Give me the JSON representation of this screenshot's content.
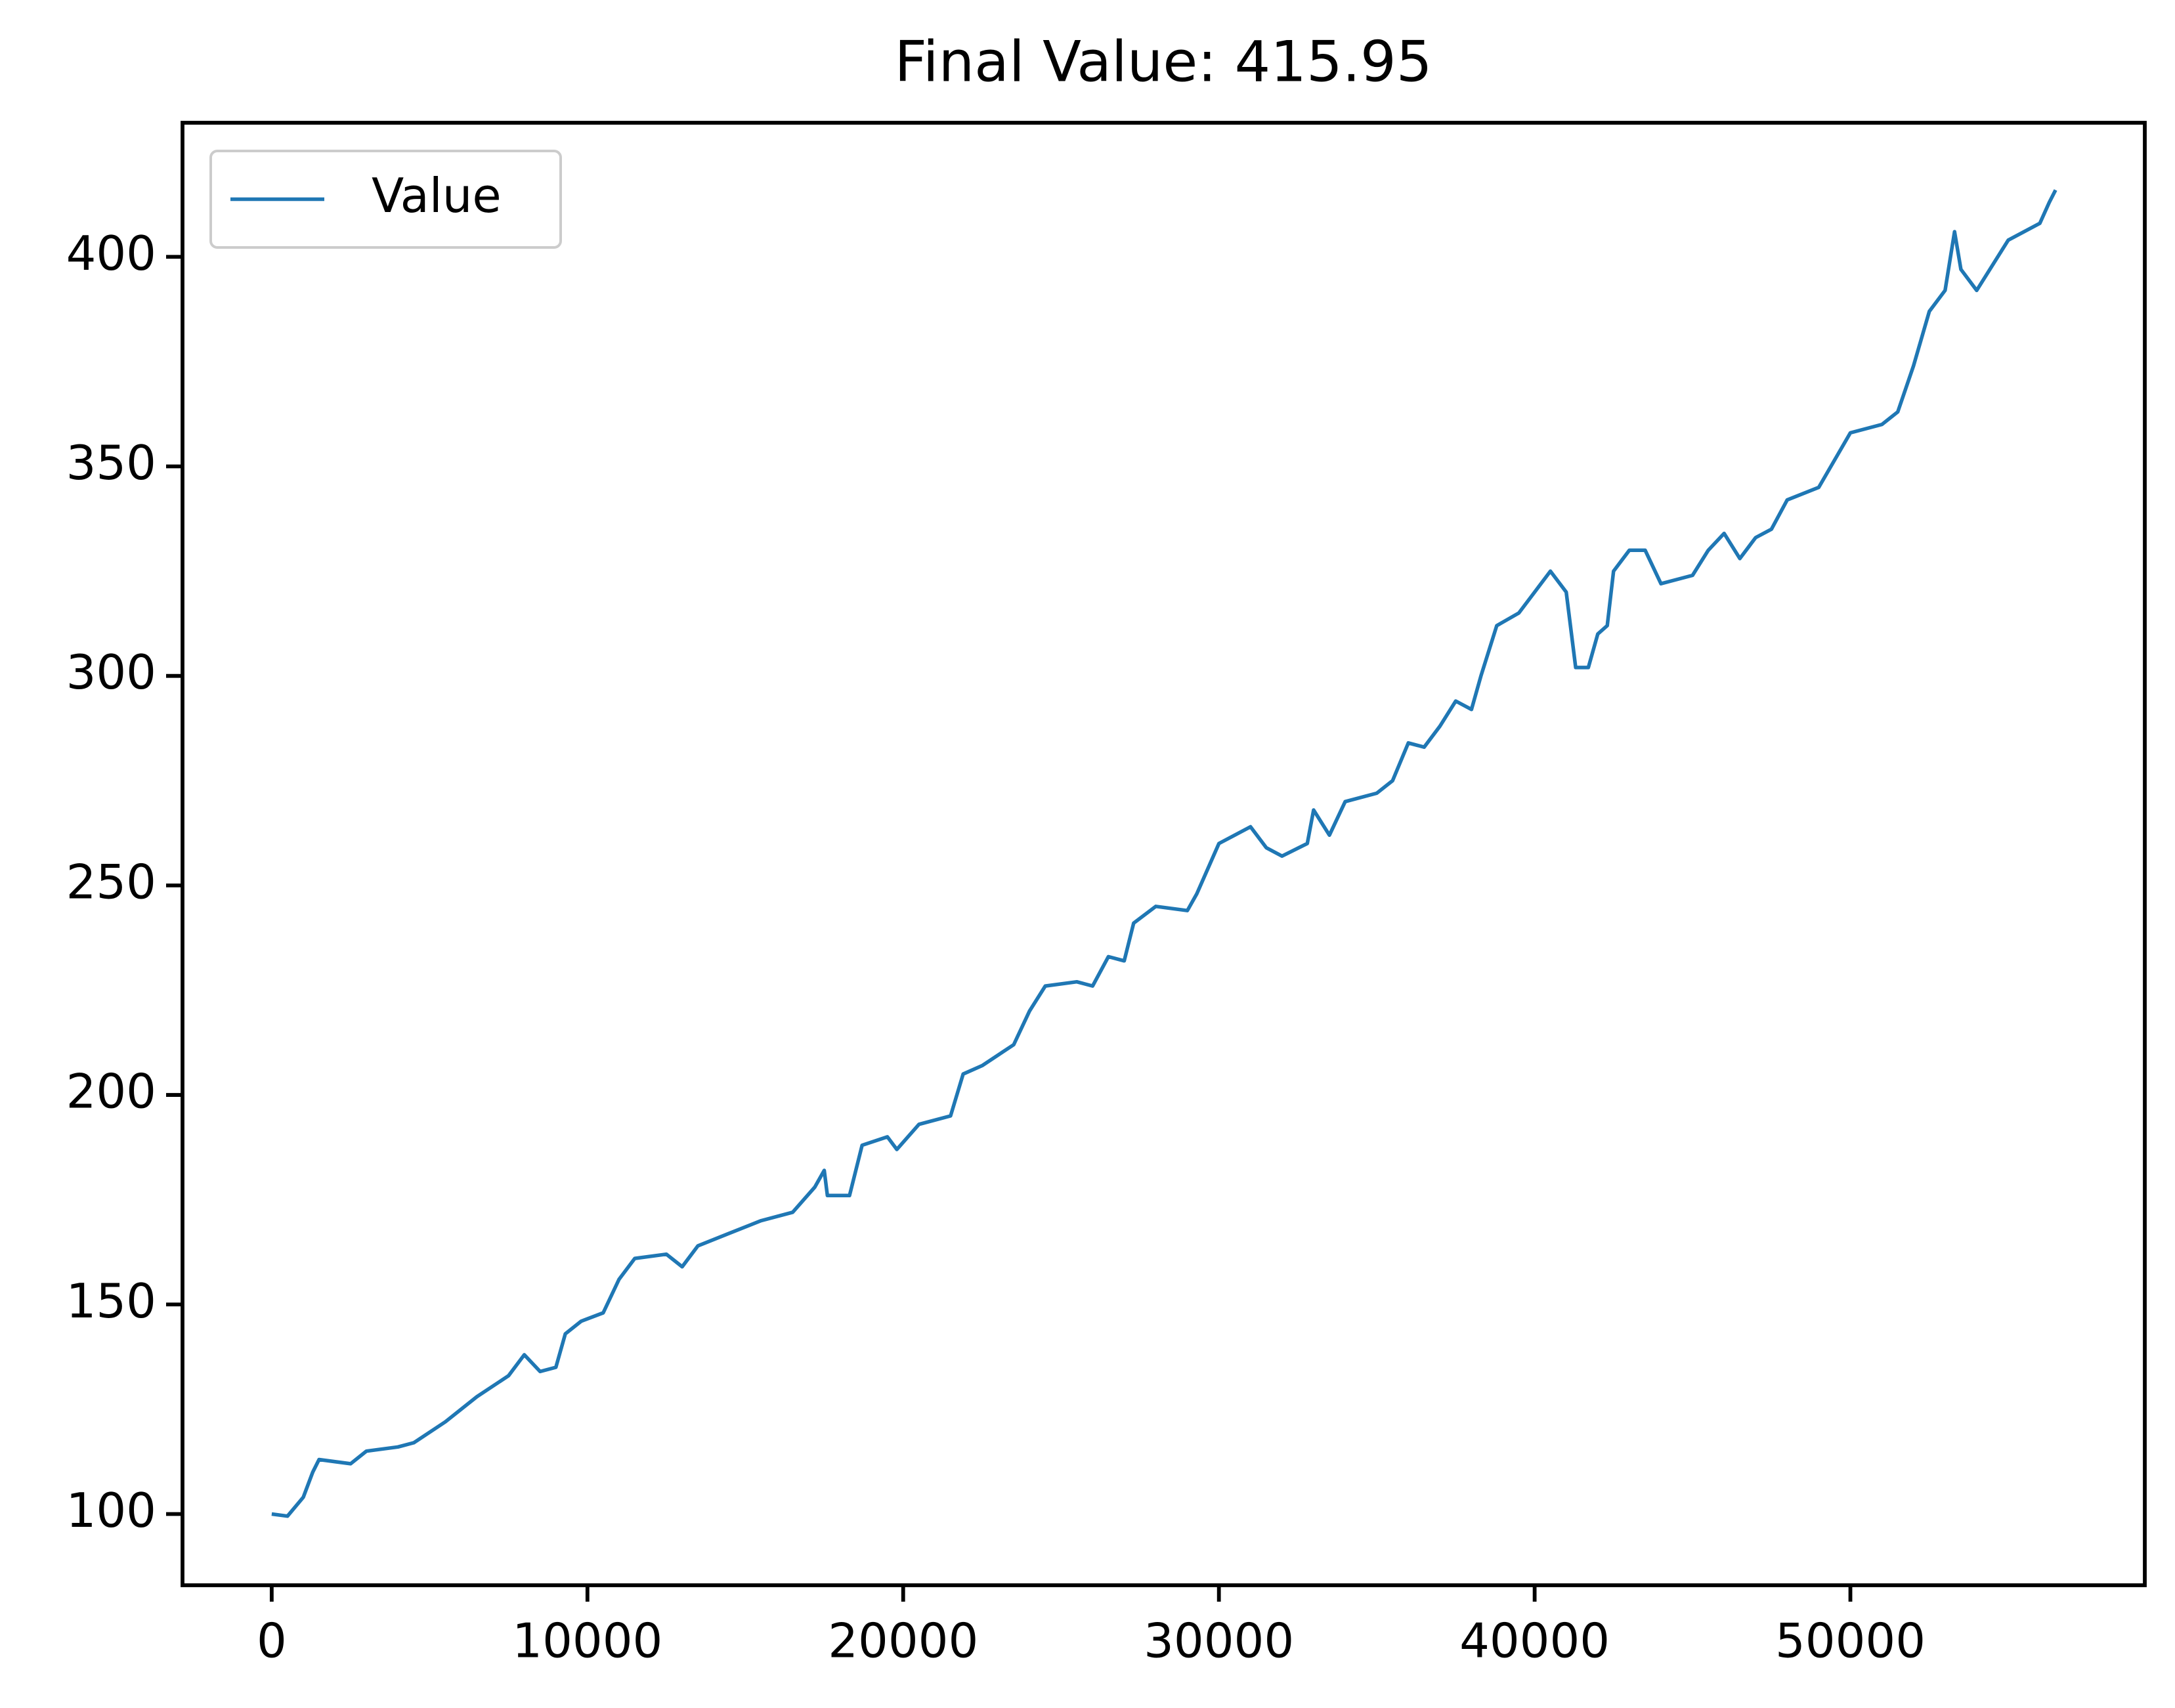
{
  "chart_data": {
    "type": "line",
    "title": "Final Value: 415.95",
    "x": [
      0,
      500,
      1000,
      1300,
      1500,
      2500,
      3000,
      4000,
      4500,
      5500,
      6500,
      7500,
      8000,
      8500,
      9000,
      9300,
      9800,
      10500,
      11000,
      11500,
      12500,
      13000,
      13500,
      14500,
      15500,
      16500,
      17200,
      17500,
      17600,
      18300,
      18700,
      19500,
      19800,
      20500,
      21500,
      21900,
      22500,
      23500,
      24000,
      24500,
      25500,
      26000,
      26500,
      27000,
      27300,
      28000,
      29000,
      29300,
      30000,
      30500,
      31000,
      31500,
      32000,
      32800,
      33000,
      33500,
      34000,
      35000,
      35500,
      36000,
      36500,
      37000,
      37500,
      38000,
      38300,
      38800,
      39500,
      40000,
      40500,
      41000,
      41300,
      41700,
      42000,
      42300,
      42500,
      43000,
      43500,
      44000,
      45000,
      45500,
      46000,
      46500,
      47000,
      47500,
      48000,
      49000,
      50000,
      51000,
      51500,
      52000,
      52500,
      53000,
      53300,
      53500,
      54000,
      55000,
      56000,
      56300,
      56500
    ],
    "series": [
      {
        "name": "Value",
        "color": "#1f77b4",
        "values": [
          100,
          99.5,
          104,
          110,
          113,
          112,
          115,
          116,
          117,
          122,
          128,
          133,
          138,
          134,
          135,
          143,
          146,
          148,
          156,
          161,
          162,
          159,
          164,
          167,
          170,
          172,
          178,
          182,
          176,
          176,
          188,
          190,
          187,
          193,
          195,
          205,
          207,
          212,
          220,
          226,
          227,
          226,
          233,
          232,
          241,
          245,
          244,
          248,
          260,
          262,
          264,
          259,
          257,
          260,
          268,
          262,
          270,
          272,
          275,
          284,
          283,
          288,
          294,
          292,
          300,
          312,
          315,
          320,
          325,
          320,
          302,
          302,
          310,
          312,
          325,
          330,
          330,
          322,
          324,
          330,
          334,
          328,
          333,
          335,
          342,
          345,
          358,
          360,
          363,
          374,
          387,
          392,
          406,
          397,
          392,
          404,
          408,
          413,
          415.95
        ]
      }
    ],
    "xlim": [
      -2825,
      59325
    ],
    "xticks": [
      0,
      10000,
      20000,
      30000,
      40000,
      50000
    ],
    "ylim": [
      83,
      432
    ],
    "yticks": [
      100,
      150,
      200,
      250,
      300,
      350,
      400
    ],
    "legend": "upper left",
    "grid": false
  }
}
